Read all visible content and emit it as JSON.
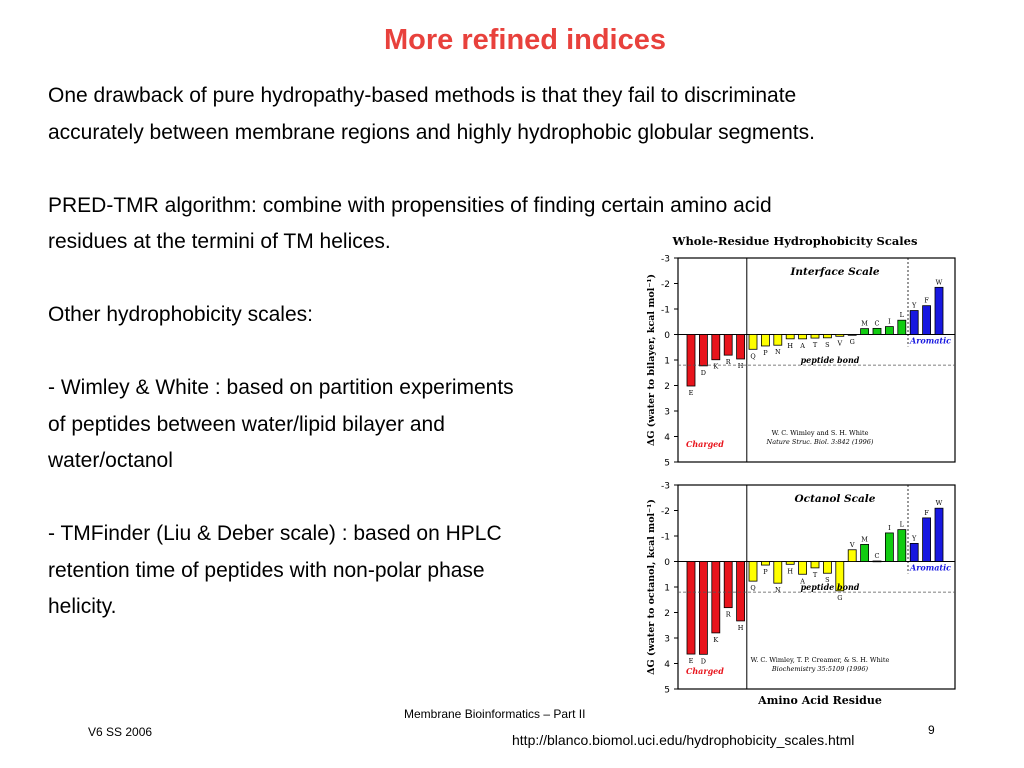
{
  "slide": {
    "title": "More refined indices",
    "title_color": "#e8413c",
    "paragraphs": [
      "One drawback of pure hydropathy-based methods is that they fail to discriminate",
      "accurately between membrane regions and highly hydrophobic globular segments.",
      "",
      "PRED-TMR algorithm: combine with propensities of finding certain amino acid",
      "residues at the termini of TM helices.",
      "",
      "Other hydrophobicity scales:",
      "",
      "- Wimley & White : based on partition experiments",
      "of peptides between water/lipid bilayer and",
      "water/octanol",
      "",
      "- TMFinder (Liu & Deber scale) : based on HPLC",
      "retention time of peptides with non-polar phase",
      "helicity."
    ],
    "footer_left": "V6 SS 2006",
    "footer_center": "Membrane Bioinformatics – Part II",
    "page_number": "9",
    "url": "http://blanco.biomol.uci.edu/hydrophobicity_scales.html"
  },
  "figure": {
    "title": "Whole-Residue Hydrophobicity Scales",
    "xlabel": "Amino Acid Residue",
    "color_red": "#e8141c",
    "color_yellow": "#ffff00",
    "color_green": "#11cc11",
    "color_blue": "#1818e0"
  },
  "chart_data": [
    {
      "type": "bar",
      "title": "Interface Scale",
      "ylabel": "ΔG (water to bilayer, kcal mol⁻¹)",
      "ylim": [
        -3,
        5
      ],
      "y_inverted": true,
      "y_ticks": [
        "-3",
        "-2",
        "-1",
        "0",
        "1",
        "2",
        "3",
        "4",
        "5"
      ],
      "grid": false,
      "categories": [
        "E",
        "D",
        "K",
        "R",
        "H",
        "Q",
        "P",
        "N",
        "H",
        "A",
        "T",
        "S",
        "V",
        "G",
        "M",
        "C",
        "I",
        "L",
        "Y",
        "F",
        "W"
      ],
      "values": [
        2.02,
        1.23,
        0.99,
        0.81,
        0.96,
        0.58,
        0.45,
        0.42,
        0.17,
        0.17,
        0.14,
        0.13,
        0.07,
        0.01,
        -0.23,
        -0.24,
        -0.31,
        -0.56,
        -0.94,
        -1.13,
        -1.85
      ],
      "colors": [
        "red",
        "red",
        "red",
        "red",
        "red",
        "yellow",
        "yellow",
        "yellow",
        "yellow",
        "yellow",
        "yellow",
        "yellow",
        "yellow",
        "yellow",
        "green",
        "green",
        "green",
        "green",
        "blue",
        "blue",
        "blue"
      ],
      "reference_label": "peptide bond",
      "group_labels": {
        "charged": "Charged",
        "aromatic": "Aromatic"
      },
      "citation": [
        "W. C. Wimley and S. H. White",
        "Nature Struc. Biol. 3:842 (1996)"
      ]
    },
    {
      "type": "bar",
      "title": "Octanol Scale",
      "ylabel": "ΔG (water to octanol, kcal mol⁻¹)",
      "ylim": [
        -3,
        5
      ],
      "y_inverted": true,
      "y_ticks": [
        "-3",
        "-2",
        "-1",
        "0",
        "1",
        "2",
        "3",
        "4",
        "5"
      ],
      "grid": false,
      "categories": [
        "E",
        "D",
        "K",
        "R",
        "H",
        "Q",
        "P",
        "N",
        "H",
        "A",
        "T",
        "S",
        "G",
        "V",
        "M",
        "C",
        "I",
        "L",
        "Y",
        "F",
        "W"
      ],
      "values": [
        3.63,
        3.64,
        2.8,
        1.81,
        2.33,
        0.77,
        0.14,
        0.85,
        0.11,
        0.5,
        0.25,
        0.46,
        1.15,
        -0.46,
        -0.67,
        -0.02,
        -1.12,
        -1.25,
        -0.71,
        -1.71,
        -2.09
      ],
      "colors": [
        "red",
        "red",
        "red",
        "red",
        "red",
        "yellow",
        "yellow",
        "yellow",
        "yellow",
        "yellow",
        "yellow",
        "yellow",
        "yellow",
        "yellow",
        "green",
        "green",
        "green",
        "green",
        "blue",
        "blue",
        "blue"
      ],
      "reference_label": "peptide bond",
      "group_labels": {
        "charged": "Charged",
        "aromatic": "Aromatic"
      },
      "citation": [
        "W. C. Wimley, T. P. Creamer, & S. H. White",
        "Biochemistry 35:5109 (1996)"
      ]
    }
  ]
}
